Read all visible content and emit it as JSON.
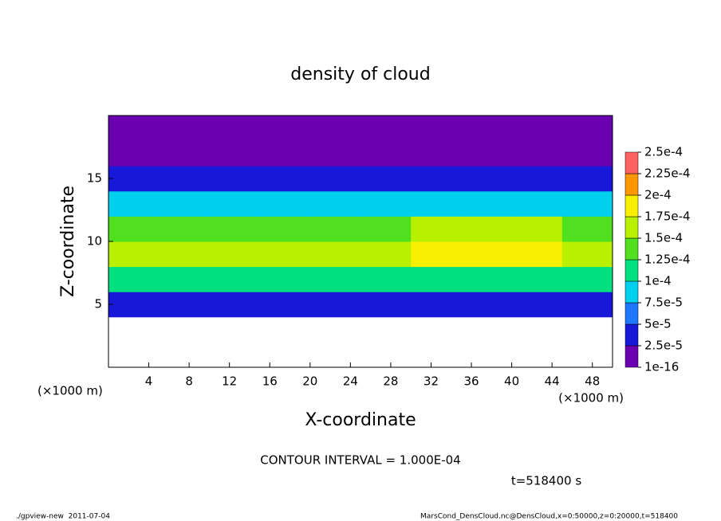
{
  "chart_data": {
    "type": "heatmap",
    "title": "density of cloud",
    "x_label": "X-coordinate",
    "y_label": "Z-coordinate",
    "x_unit": "(×1000 m)",
    "y_unit": "(×1000 m)",
    "xlim": [
      0,
      50
    ],
    "ylim": [
      0,
      20
    ],
    "xticks": [
      4,
      8,
      12,
      16,
      20,
      24,
      28,
      32,
      36,
      40,
      44,
      48
    ],
    "yticks": [
      5,
      10,
      15
    ],
    "x": [
      2.5,
      7.5,
      12.5,
      17.5,
      22.5,
      27.5,
      32.5,
      37.5,
      42.5,
      47.5
    ],
    "z": [
      5,
      7,
      9,
      11,
      13,
      15,
      17,
      19
    ],
    "values": [
      [
        4e-05,
        4e-05,
        4e-05,
        4e-05,
        4e-05,
        4e-05,
        4e-05,
        4e-05,
        4e-05,
        4e-05
      ],
      [
        0.000105,
        0.000105,
        0.000105,
        0.000105,
        0.000105,
        0.000105,
        0.000105,
        0.000105,
        0.000105,
        0.000105
      ],
      [
        0.00016,
        0.00016,
        0.00016,
        0.00016,
        0.00016,
        0.00016,
        0.000175,
        0.000175,
        0.000175,
        0.00016
      ],
      [
        0.000145,
        0.000145,
        0.000145,
        0.000145,
        0.000145,
        0.000145,
        0.00017,
        0.00017,
        0.00017,
        0.000145
      ],
      [
        9e-05,
        9e-05,
        9e-05,
        9e-05,
        9e-05,
        9e-05,
        9e-05,
        9e-05,
        9e-05,
        9e-05
      ],
      [
        4e-05,
        4e-05,
        4e-05,
        4e-05,
        4e-05,
        4e-05,
        4e-05,
        4e-05,
        4e-05,
        4e-05
      ],
      [
        2e-05,
        2e-05,
        2e-05,
        2e-05,
        2e-05,
        2e-05,
        2e-05,
        2e-05,
        2e-05,
        2e-05
      ],
      [
        5e-06,
        5e-06,
        5e-06,
        5e-06,
        5e-06,
        5e-06,
        5e-06,
        5e-06,
        5e-06,
        5e-06
      ]
    ],
    "levels": [
      {
        "value": 1e-16,
        "label": "1e-16"
      },
      {
        "value": 2.5e-05,
        "label": "2.5e-5"
      },
      {
        "value": 5e-05,
        "label": "5e-5"
      },
      {
        "value": 7.5e-05,
        "label": "7.5e-5"
      },
      {
        "value": 0.0001,
        "label": "1e-4"
      },
      {
        "value": 0.000125,
        "label": "1.25e-4"
      },
      {
        "value": 0.00015,
        "label": "1.5e-4"
      },
      {
        "value": 0.000175,
        "label": "1.75e-4"
      },
      {
        "value": 0.0002,
        "label": "2e-4"
      },
      {
        "value": 0.000225,
        "label": "2.25e-4"
      },
      {
        "value": 0.00025,
        "label": "2.5e-4"
      }
    ],
    "colors": [
      "#6a00b0",
      "#1818d8",
      "#1e78ff",
      "#00d0f0",
      "#00e080",
      "#50e020",
      "#b8f000",
      "#f8f000",
      "#ff9800",
      "#ff6060"
    ],
    "annotation": "CONTOUR INTERVAL = 1.000E-04",
    "time_label": "t=518400 s",
    "footer_left": "./gpview-new  2011-07-04",
    "footer_right": "MarsCond_DensCloud.nc@DensCloud,x=0:50000,z=0:20000,t=518400"
  }
}
